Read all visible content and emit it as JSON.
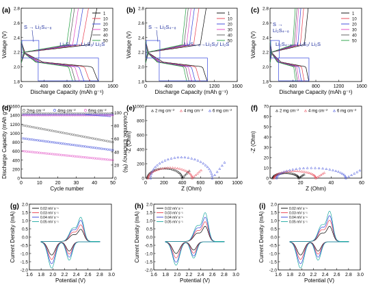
{
  "figure": {
    "colors": {
      "black": "#000000",
      "red": "#e8394a",
      "magenta": "#e040c0",
      "blue": "#2f3fd8",
      "navy": "#1a2a9c",
      "green": "#1e9e3e",
      "teal": "#1aa8a0",
      "gray": "#555555",
      "box": "#3344dd"
    }
  },
  "chart_data": [
    {
      "panel": "(a)",
      "type": "line",
      "xlabel": "Discharge Capacity (mAh g⁻¹)",
      "ylabel": "Voltage (V)",
      "xlim": [
        0,
        1600
      ],
      "ylim": [
        1.8,
        2.8
      ],
      "xticks": [
        "0",
        "400",
        "800",
        "1200",
        "1600"
      ],
      "yticks": [
        "1.8",
        "2.0",
        "2.2",
        "2.4",
        "2.6",
        "2.8"
      ],
      "legend": {
        "position": "top-right",
        "entries": [
          "1",
          "10",
          "20",
          "30",
          "40",
          "50"
        ]
      },
      "annotations": [
        "S → Li₂S₄₋₈",
        "Li₂S₄₋₈→Li₂S₂/ Li₂S"
      ],
      "series": [
        {
          "name": "1",
          "end_capacity": 1350
        },
        {
          "name": "10",
          "end_capacity": 1200
        },
        {
          "name": "20",
          "end_capacity": 1100
        },
        {
          "name": "30",
          "end_capacity": 1020
        },
        {
          "name": "40",
          "end_capacity": 950
        },
        {
          "name": "50",
          "end_capacity": 900
        }
      ]
    },
    {
      "panel": "(b)",
      "type": "line",
      "xlabel": "Discharge Capacity (mAh g⁻¹)",
      "ylabel": "Voltage (V)",
      "xlim": [
        0,
        1600
      ],
      "ylim": [
        1.8,
        2.8
      ],
      "xticks": [
        "0",
        "400",
        "800",
        "1200",
        "1600"
      ],
      "yticks": [
        "1.8",
        "2.0",
        "2.2",
        "2.4",
        "2.6",
        "2.8"
      ],
      "legend": {
        "position": "top-right",
        "entries": [
          "1",
          "10",
          "20",
          "30",
          "40",
          "50"
        ]
      },
      "annotations": [
        "S → Li₂S₄₋₈",
        "Li₂S₄₋₈→Li₂S₂/ Li₂S"
      ],
      "series": [
        {
          "name": "1",
          "end_capacity": 1080
        },
        {
          "name": "10",
          "end_capacity": 950
        },
        {
          "name": "20",
          "end_capacity": 870
        },
        {
          "name": "30",
          "end_capacity": 810
        },
        {
          "name": "40",
          "end_capacity": 760
        },
        {
          "name": "50",
          "end_capacity": 720
        }
      ]
    },
    {
      "panel": "(c)",
      "type": "line",
      "xlabel": "Discharge Capacity (mAh g⁻¹)",
      "ylabel": "Voltage (V)",
      "xlim": [
        0,
        1600
      ],
      "ylim": [
        1.8,
        2.8
      ],
      "xticks": [
        "0",
        "400",
        "800",
        "1200",
        "1600"
      ],
      "yticks": [
        "1.8",
        "2.0",
        "2.2",
        "2.4",
        "2.6",
        "2.8"
      ],
      "legend": {
        "position": "top-right",
        "entries": [
          "1",
          "10",
          "20",
          "30",
          "40",
          "50"
        ]
      },
      "annotations": [
        "S →",
        "Li₂S₄₋₈",
        "Li₂S₄₋₈→Li₂S₂/ Li₂S"
      ],
      "series": [
        {
          "name": "1",
          "end_capacity": 680
        },
        {
          "name": "10",
          "end_capacity": 600
        },
        {
          "name": "20",
          "end_capacity": 550
        },
        {
          "name": "30",
          "end_capacity": 510
        },
        {
          "name": "40",
          "end_capacity": 480
        },
        {
          "name": "50",
          "end_capacity": 450
        }
      ]
    },
    {
      "panel": "(d)",
      "type": "scatter",
      "xlabel": "Cycle number",
      "ylabel": "Discharge Capacity (mAh g⁻¹)",
      "ylabel_right": "Coulombic Efficiency (%)",
      "xlim": [
        0,
        50
      ],
      "ylim": [
        0,
        1800
      ],
      "ylim_right": [
        0,
        110
      ],
      "xticks": [
        "0",
        "10",
        "20",
        "30",
        "40",
        "50"
      ],
      "yticks": [
        "0",
        "200",
        "400",
        "600",
        "800",
        "1000",
        "1200",
        "1400",
        "1600"
      ],
      "yticks_right": [
        "0",
        "20",
        "40",
        "60",
        "80",
        "100"
      ],
      "legend": {
        "position": "top",
        "entries": [
          "2mg cm⁻²",
          "4mg cm⁻²",
          "6mg cm⁻²"
        ]
      },
      "series": [
        {
          "name": "2mg cm⁻²",
          "capacity_start": 1330,
          "capacity_end": 900,
          "efficiency": 99
        },
        {
          "name": "4mg cm⁻²",
          "capacity_start": 1000,
          "capacity_end": 700,
          "efficiency": 97
        },
        {
          "name": "6mg cm⁻²",
          "capacity_start": 680,
          "capacity_end": 450,
          "efficiency": 96
        }
      ]
    },
    {
      "panel": "(e)",
      "type": "scatter",
      "xlabel": "Z (Ohm)",
      "ylabel": "-Z (Ohm)",
      "xlim": [
        0,
        1100
      ],
      "ylim": [
        0,
        1100
      ],
      "xticks": [
        "0",
        "200",
        "400",
        "600",
        "800",
        "1000"
      ],
      "yticks": [
        "0",
        "200",
        "400",
        "600",
        "800",
        "1000"
      ],
      "legend": {
        "position": "top",
        "entries": [
          "2 mg cm⁻²",
          "4 mg cm⁻²",
          "6 mg cm⁻²"
        ]
      },
      "series": [
        {
          "name": "2 mg cm⁻²",
          "z_start": 20,
          "z_end": 440,
          "peak": 150
        },
        {
          "name": "4 mg cm⁻²",
          "z_start": 30,
          "z_end": 560,
          "peak": 160
        },
        {
          "name": "6 mg cm⁻²",
          "z_start": 60,
          "z_end": 800,
          "peak": 320
        }
      ]
    },
    {
      "panel": "(f)",
      "type": "scatter",
      "xlabel": "Z (Ohm)",
      "ylabel": "-Z (Ohm)",
      "xlim": [
        0,
        70
      ],
      "ylim": [
        0,
        70
      ],
      "xticks": [
        "0",
        "20",
        "40",
        "60"
      ],
      "yticks": [
        "0",
        "10",
        "20",
        "30",
        "40",
        "50",
        "60",
        "70"
      ],
      "legend": {
        "position": "top",
        "entries": [
          "2 mg cm⁻²",
          "4 mg cm⁻²",
          "6 mg cm⁻²"
        ]
      },
      "series": [
        {
          "name": "2 mg cm⁻²",
          "z_start": 2,
          "z_end": 22,
          "peak": 5
        },
        {
          "name": "4 mg cm⁻²",
          "z_start": 3,
          "z_end": 35,
          "peak": 7
        },
        {
          "name": "6 mg cm⁻²",
          "z_start": 5,
          "z_end": 58,
          "peak": 10
        }
      ]
    },
    {
      "panel": "(g)",
      "type": "line",
      "xlabel": "Potential (V)",
      "ylabel": "Current Density (mA)",
      "xlim": [
        1.6,
        3.0
      ],
      "ylim": [
        -2.0,
        2.5
      ],
      "xticks": [
        "1.6",
        "1.8",
        "2.0",
        "2.2",
        "2.4",
        "2.6",
        "2.8",
        "3.0"
      ],
      "yticks": [
        "-2.0",
        "-1.5",
        "-1.0",
        "-0.5",
        "0.0",
        "0.5",
        "1.0",
        "1.5",
        "2.0"
      ],
      "legend": {
        "position": "top-left",
        "entries": [
          "0.02 mV s⁻¹",
          "0.03 mV s⁻¹",
          "0.04 mV s⁻¹",
          "0.05 mV s⁻¹"
        ]
      },
      "series": [
        {
          "name": "0.02 mV s⁻¹",
          "ox_peak": 0.8,
          "red_peak": -0.9
        },
        {
          "name": "0.03 mV s⁻¹",
          "ox_peak": 1.1,
          "red_peak": -1.2
        },
        {
          "name": "0.04 mV s⁻¹",
          "ox_peak": 1.4,
          "red_peak": -1.5
        },
        {
          "name": "0.05 mV s⁻¹",
          "ox_peak": 1.6,
          "red_peak": -1.8
        }
      ]
    },
    {
      "panel": "(h)",
      "type": "line",
      "xlabel": "Potential (V)",
      "ylabel": "Current Density (mA)",
      "xlim": [
        1.6,
        3.0
      ],
      "ylim": [
        -2.0,
        2.5
      ],
      "xticks": [
        "1.6",
        "1.8",
        "2.0",
        "2.2",
        "2.4",
        "2.6",
        "2.8",
        "3.0"
      ],
      "yticks": [
        "-2.0",
        "-1.5",
        "-1.0",
        "-0.5",
        "0.0",
        "0.5",
        "1.0",
        "1.5",
        "2.0"
      ],
      "legend": {
        "position": "top-left",
        "entries": [
          "0.02 mV s⁻¹",
          "0.03 mV s⁻¹",
          "0.04 mV s⁻¹",
          "0.05 mV s⁻¹"
        ]
      },
      "series": [
        {
          "name": "0.02 mV s⁻¹",
          "ox_peak": 1.0,
          "red_peak": -0.8
        },
        {
          "name": "0.03 mV s⁻¹",
          "ox_peak": 1.3,
          "red_peak": -1.1
        },
        {
          "name": "0.04 mV s⁻¹",
          "ox_peak": 1.6,
          "red_peak": -1.4
        },
        {
          "name": "0.05 mV s⁻¹",
          "ox_peak": 1.9,
          "red_peak": -1.6
        }
      ]
    },
    {
      "panel": "(i)",
      "type": "line",
      "xlabel": "Potential (V)",
      "ylabel": "Current Density (mA)",
      "xlim": [
        1.6,
        3.0
      ],
      "ylim": [
        -2.0,
        2.5
      ],
      "xticks": [
        "1.6",
        "1.8",
        "2.0",
        "2.2",
        "2.4",
        "2.6",
        "2.8",
        "3.0"
      ],
      "yticks": [
        "-2.0",
        "-1.5",
        "-1.0",
        "-0.5",
        "0.0",
        "0.5",
        "1.0",
        "1.5",
        "2.0"
      ],
      "legend": {
        "position": "top-left",
        "entries": [
          "0.02 mV s⁻¹",
          "0.03 mV s⁻¹",
          "0.04 mV s⁻¹",
          "0.05 mV s⁻¹"
        ]
      },
      "series": [
        {
          "name": "0.02 mV s⁻¹",
          "ox_peak": 1.0,
          "red_peak": -0.9
        },
        {
          "name": "0.03 mV s⁻¹",
          "ox_peak": 1.4,
          "red_peak": -1.2
        },
        {
          "name": "0.04 mV s⁻¹",
          "ox_peak": 1.7,
          "red_peak": -1.5
        },
        {
          "name": "0.05 mV s⁻¹",
          "ox_peak": 2.0,
          "red_peak": -1.8
        }
      ]
    }
  ]
}
